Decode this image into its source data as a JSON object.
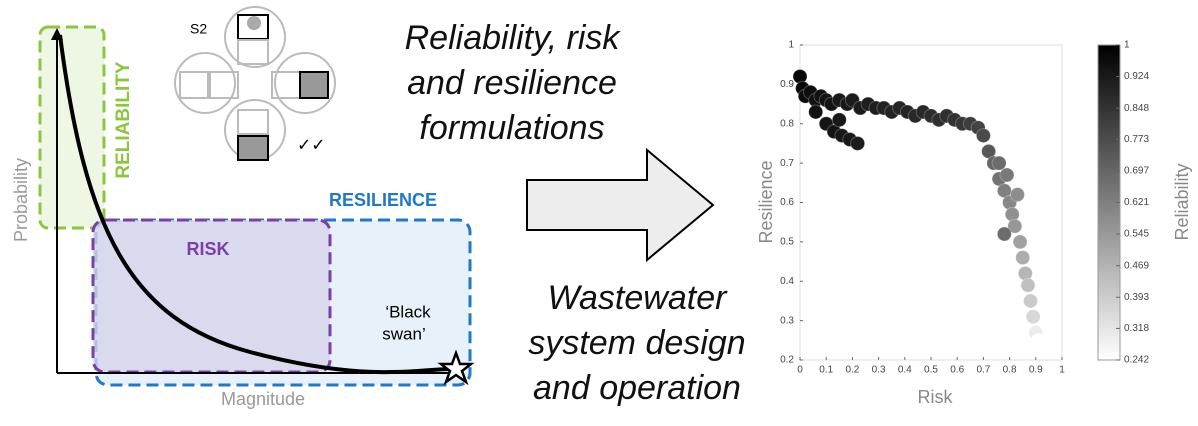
{
  "diagram": {
    "probability_label": "Probability",
    "magnitude_label": "Magnitude",
    "reliability_label": "RELIABILITY",
    "risk_label": "RISK",
    "resilience_label": "RESILIENCE",
    "black_swan": [
      "‘Black",
      "swan’"
    ],
    "network_label": "S2",
    "checks": "✓✓",
    "top_text": [
      "Reliability, risk",
      "and resilience",
      "formulations"
    ],
    "bottom_text": [
      "Wastewater",
      "system design",
      "and operation"
    ]
  },
  "chart_data": {
    "type": "scatter",
    "xlabel": "Risk",
    "ylabel": "Resilience",
    "colorbar_label": "Reliability",
    "xlim": [
      0,
      1
    ],
    "ylim": [
      0.2,
      1
    ],
    "xticks": [
      0,
      0.1,
      0.2,
      0.3,
      0.4,
      0.5,
      0.6,
      0.7,
      0.8,
      0.9,
      1
    ],
    "yticks": [
      0.2,
      0.3,
      0.4,
      0.5,
      0.6,
      0.7,
      0.8,
      0.9,
      1
    ],
    "clim": [
      0.242,
      1
    ],
    "cticks": [
      0.242,
      0.318,
      0.393,
      0.469,
      0.545,
      0.621,
      0.697,
      0.773,
      0.848,
      0.924,
      1
    ],
    "colormap": [
      "#ffffff",
      "#000000"
    ],
    "series": [
      {
        "x": [
          0.0,
          0.01,
          0.02,
          0.04,
          0.06,
          0.08,
          0.1,
          0.12,
          0.15,
          0.18,
          0.2,
          0.23,
          0.26,
          0.29,
          0.32,
          0.35,
          0.38,
          0.41,
          0.44,
          0.47,
          0.5,
          0.53,
          0.56,
          0.59,
          0.62,
          0.65,
          0.68,
          0.7,
          0.06,
          0.1,
          0.13,
          0.16,
          0.19,
          0.22,
          0.15,
          0.72,
          0.74,
          0.76,
          0.78,
          0.8,
          0.81,
          0.82,
          0.84,
          0.85,
          0.86,
          0.87,
          0.88,
          0.89,
          0.9,
          0.91,
          0.76,
          0.79,
          0.83,
          0.78
        ],
        "values": [
          0.92,
          0.89,
          0.87,
          0.88,
          0.86,
          0.87,
          0.86,
          0.85,
          0.86,
          0.85,
          0.86,
          0.84,
          0.85,
          0.84,
          0.84,
          0.83,
          0.84,
          0.83,
          0.82,
          0.83,
          0.82,
          0.81,
          0.82,
          0.81,
          0.8,
          0.8,
          0.79,
          0.77,
          0.83,
          0.8,
          0.78,
          0.77,
          0.76,
          0.75,
          0.81,
          0.73,
          0.7,
          0.66,
          0.63,
          0.6,
          0.57,
          0.54,
          0.5,
          0.46,
          0.42,
          0.39,
          0.35,
          0.31,
          0.27,
          0.25,
          0.7,
          0.67,
          0.62,
          0.52
        ],
        "color_values": [
          0.98,
          0.97,
          0.96,
          0.96,
          0.95,
          0.95,
          0.94,
          0.94,
          0.93,
          0.93,
          0.92,
          0.92,
          0.91,
          0.91,
          0.9,
          0.9,
          0.89,
          0.89,
          0.88,
          0.88,
          0.87,
          0.86,
          0.86,
          0.85,
          0.84,
          0.82,
          0.8,
          0.78,
          0.95,
          0.94,
          0.94,
          0.93,
          0.93,
          0.92,
          0.93,
          0.74,
          0.7,
          0.66,
          0.62,
          0.6,
          0.57,
          0.55,
          0.52,
          0.49,
          0.46,
          0.43,
          0.4,
          0.36,
          0.3,
          0.242,
          0.68,
          0.64,
          0.58,
          0.68
        ]
      }
    ]
  }
}
